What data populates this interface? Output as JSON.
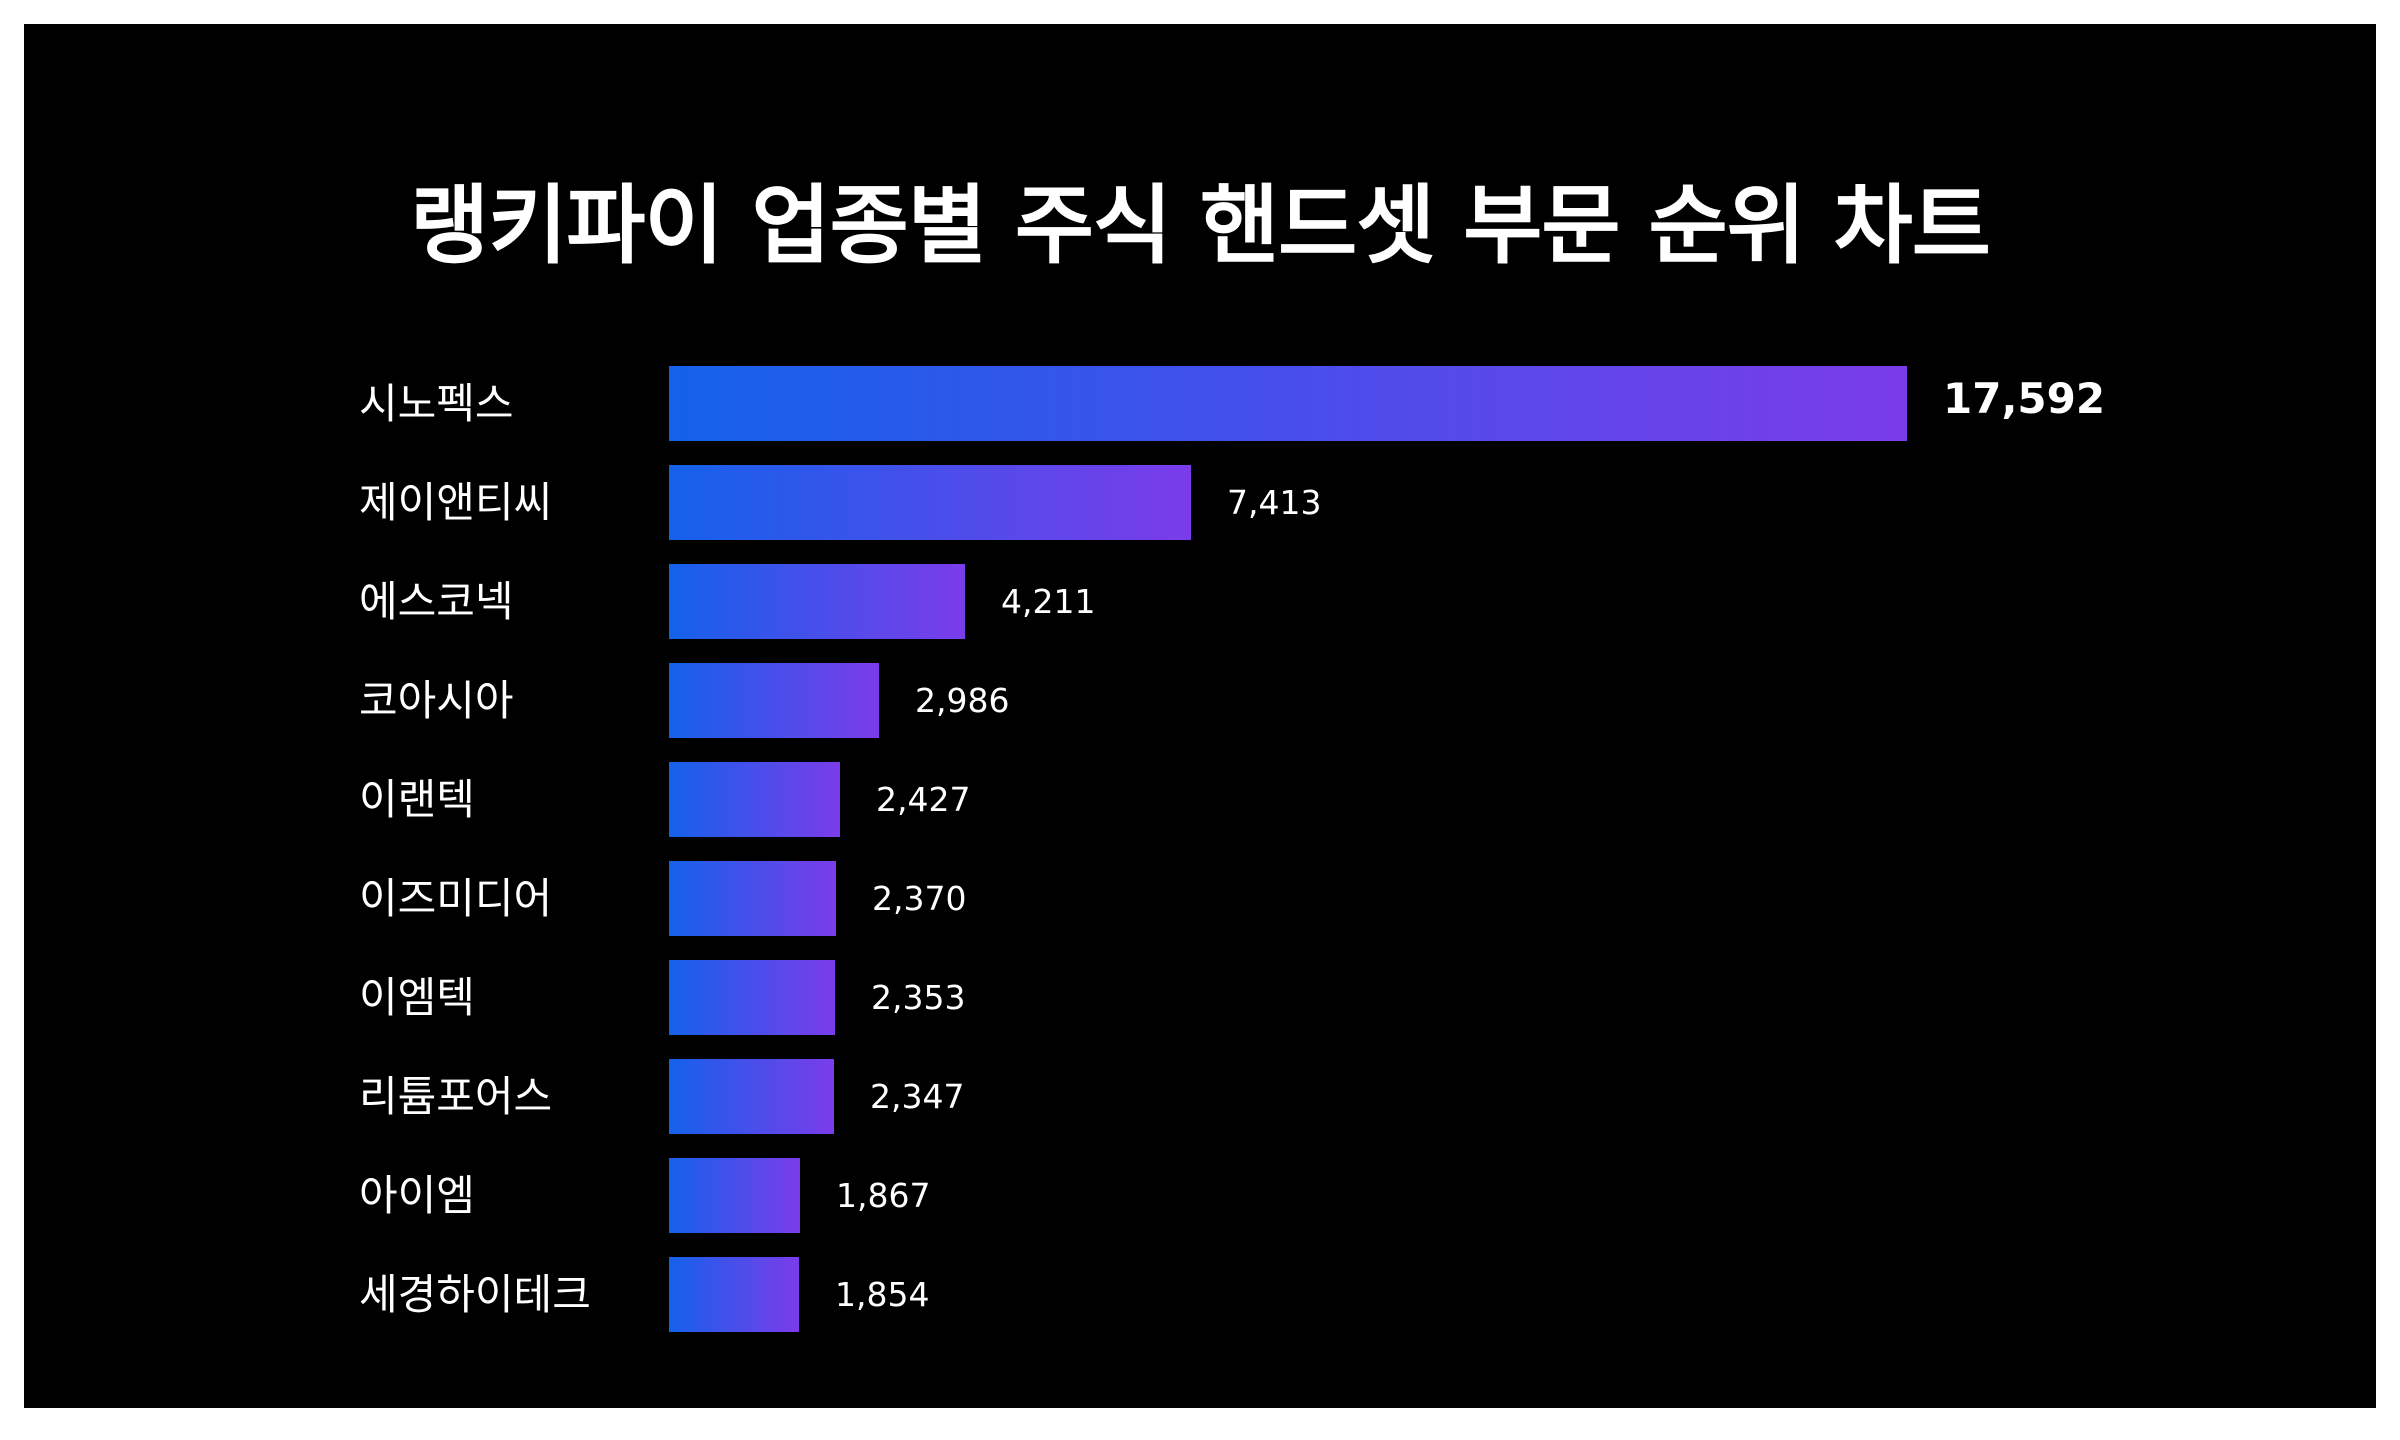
{
  "title": "랭키파이 업종별 주식 핸드셋 부문 순위 차트",
  "colors": {
    "background": "#000000",
    "bar_start": "#1461EA",
    "bar_end": "#7B3CEA",
    "text": "#FFFFFF"
  },
  "rows": [
    {
      "label": "시노펙스",
      "value": 17592,
      "value_text": "17,592"
    },
    {
      "label": "제이앤티씨",
      "value": 7413,
      "value_text": "7,413"
    },
    {
      "label": "에스코넥",
      "value": 4211,
      "value_text": "4,211"
    },
    {
      "label": "코아시아",
      "value": 2986,
      "value_text": "2,986"
    },
    {
      "label": "이랜텍",
      "value": 2427,
      "value_text": "2,427"
    },
    {
      "label": "이즈미디어",
      "value": 2370,
      "value_text": "2,370"
    },
    {
      "label": "이엠텍",
      "value": 2353,
      "value_text": "2,353"
    },
    {
      "label": "리튬포어스",
      "value": 2347,
      "value_text": "2,347"
    },
    {
      "label": "아이엠",
      "value": 1867,
      "value_text": "1,867"
    },
    {
      "label": "세경하이테크",
      "value": 1854,
      "value_text": "1,854"
    }
  ],
  "chart_data": {
    "type": "bar",
    "orientation": "horizontal",
    "title": "랭키파이 업종별 주식 핸드셋 부문 순위 차트",
    "categories": [
      "시노펙스",
      "제이앤티씨",
      "에스코넥",
      "코아시아",
      "이랜텍",
      "이즈미디어",
      "이엠텍",
      "리튬포어스",
      "아이엠",
      "세경하이테크"
    ],
    "values": [
      17592,
      7413,
      4211,
      2986,
      2427,
      2370,
      2353,
      2347,
      1867,
      1854
    ],
    "xlabel": "",
    "ylabel": "",
    "grid": false,
    "legend": null,
    "data_labels": true,
    "xlim": [
      0,
      17592
    ]
  }
}
